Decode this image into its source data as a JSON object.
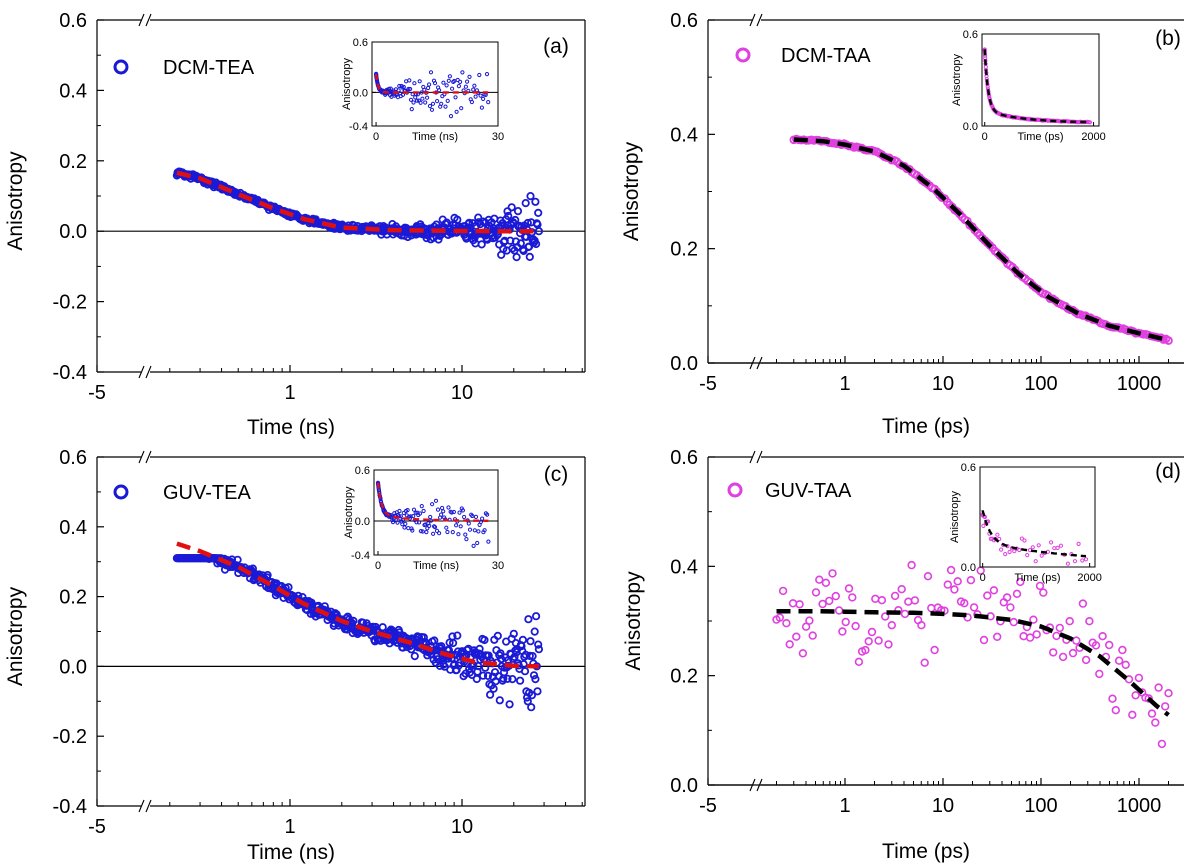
{
  "figure": "four-panel anisotropy decay figure",
  "chart_data": [
    {
      "panel": "(a)",
      "type": "scatter",
      "legend": "DCM-TEA",
      "marker_color": "#1a1ad6",
      "fit_color": "#e01010",
      "xlabel": "Time (ns)",
      "ylabel": "Anisotropy",
      "x_ticks": [
        "-5",
        "1",
        "10"
      ],
      "y_ticks": [
        "0.6",
        "0.4",
        "0.2",
        "0.0",
        "-0.2",
        "-0.4"
      ],
      "ylim": [
        -0.4,
        0.6
      ],
      "axis_break": true,
      "zero_line": true,
      "fit_points": [
        [
          0.22,
          0.166
        ],
        [
          0.3,
          0.15
        ],
        [
          0.5,
          0.105
        ],
        [
          0.8,
          0.065
        ],
        [
          1.2,
          0.035
        ],
        [
          2,
          0.01
        ],
        [
          4,
          0.003
        ],
        [
          8,
          0.001
        ],
        [
          15,
          0.0
        ],
        [
          28,
          0.0
        ]
      ],
      "inset": {
        "xlabel": "Time (ns)",
        "ylabel": "Anisotropy",
        "x_ticks": [
          "0",
          "30"
        ],
        "y_ticks": [
          "0.6",
          "0.0",
          "-0.4"
        ],
        "xlim": [
          -1,
          30
        ],
        "ylim": [
          -0.4,
          0.6
        ]
      }
    },
    {
      "panel": "(b)",
      "type": "scatter",
      "legend": "DCM-TAA",
      "marker_color": "#e040e0",
      "fit_color": "#000000",
      "xlabel": "Time (ps)",
      "ylabel": "Anisotropy",
      "x_ticks": [
        "-5",
        "1",
        "10",
        "100",
        "1000"
      ],
      "y_ticks": [
        "0.6",
        "0.4",
        "0.2",
        "0.0"
      ],
      "ylim": [
        0.0,
        0.6
      ],
      "axis_break": true,
      "zero_line": true,
      "fit_points": [
        [
          0.3,
          0.391
        ],
        [
          0.6,
          0.388
        ],
        [
          1,
          0.382
        ],
        [
          2,
          0.37
        ],
        [
          4,
          0.345
        ],
        [
          8,
          0.305
        ],
        [
          15,
          0.26
        ],
        [
          30,
          0.205
        ],
        [
          60,
          0.155
        ],
        [
          120,
          0.115
        ],
        [
          250,
          0.085
        ],
        [
          500,
          0.065
        ],
        [
          1000,
          0.052
        ],
        [
          2000,
          0.04
        ]
      ],
      "inset": {
        "xlabel": "Time (ps)",
        "ylabel": "Anisotropy",
        "x_ticks": [
          "0",
          "2000"
        ],
        "y_ticks": [
          "0.6",
          "0.0"
        ],
        "xlim": [
          -50,
          2100
        ],
        "ylim": [
          0.0,
          0.6
        ]
      }
    },
    {
      "panel": "(c)",
      "type": "scatter",
      "legend": "GUV-TEA",
      "marker_color": "#1a1ad6",
      "fit_color": "#e01010",
      "xlabel": "Time (ns)",
      "ylabel": "Anisotropy",
      "x_ticks": [
        "-5",
        "1",
        "10"
      ],
      "y_ticks": [
        "0.6",
        "0.4",
        "0.2",
        "0.0",
        "-0.2",
        "-0.4"
      ],
      "ylim": [
        -0.4,
        0.6
      ],
      "axis_break": true,
      "zero_line": true,
      "fit_points": [
        [
          0.22,
          0.352
        ],
        [
          0.3,
          0.33
        ],
        [
          0.5,
          0.285
        ],
        [
          0.8,
          0.23
        ],
        [
          1.2,
          0.18
        ],
        [
          2,
          0.13
        ],
        [
          3,
          0.1
        ],
        [
          5,
          0.068
        ],
        [
          8,
          0.035
        ],
        [
          12,
          0.012
        ],
        [
          20,
          0.002
        ],
        [
          28,
          0.0
        ]
      ],
      "inset": {
        "xlabel": "Time (ns)",
        "ylabel": "Anisotropy",
        "x_ticks": [
          "0",
          "30"
        ],
        "y_ticks": [
          "0.6",
          "0.0",
          "-0.4"
        ],
        "xlim": [
          -1,
          30
        ],
        "ylim": [
          -0.4,
          0.6
        ]
      }
    },
    {
      "panel": "(d)",
      "type": "scatter",
      "legend": "GUV-TAA",
      "marker_color": "#e040e0",
      "fit_color": "#000000",
      "xlabel": "Time (ps)",
      "ylabel": "Anisotropy",
      "x_ticks": [
        "-5",
        "1",
        "10",
        "100",
        "1000"
      ],
      "y_ticks": [
        "0.6",
        "0.4",
        "0.2",
        "0.0"
      ],
      "ylim": [
        0.0,
        0.6
      ],
      "axis_break": true,
      "zero_line": true,
      "fit_points": [
        [
          0.2,
          0.318
        ],
        [
          0.5,
          0.318
        ],
        [
          1,
          0.317
        ],
        [
          2,
          0.316
        ],
        [
          5,
          0.315
        ],
        [
          10,
          0.313
        ],
        [
          20,
          0.31
        ],
        [
          50,
          0.302
        ],
        [
          100,
          0.29
        ],
        [
          200,
          0.268
        ],
        [
          400,
          0.235
        ],
        [
          800,
          0.19
        ],
        [
          1500,
          0.145
        ],
        [
          2000,
          0.128
        ]
      ],
      "inset": {
        "xlabel": "Time (ps)",
        "ylabel": "Anisotropy",
        "x_ticks": [
          "0",
          "2000"
        ],
        "y_ticks": [
          "0.6",
          "0.0"
        ],
        "xlim": [
          -50,
          2100
        ],
        "ylim": [
          0.0,
          0.6
        ]
      }
    }
  ]
}
